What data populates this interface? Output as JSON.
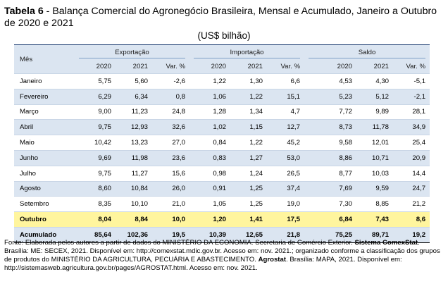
{
  "title": {
    "label": "Tabela 6",
    "sep": " - ",
    "text": "Balança Comercial do Agronegócio Brasileira, Mensal e Acumulado, Janeiro a Outubro de 2020 e 2021"
  },
  "unit": "(US$ bilhão)",
  "table": {
    "mes_header": "Mês",
    "groups": [
      "Exportação",
      "Importação",
      "Saldo"
    ],
    "subheaders": [
      "2020",
      "2021",
      "Var. %",
      "2020",
      "2021",
      "Var. %",
      "2020",
      "2021",
      "Var. %"
    ],
    "rows": [
      [
        "Janeiro",
        "5,75",
        "5,60",
        "-2,6",
        "1,22",
        "1,30",
        "6,6",
        "4,53",
        "4,30",
        "-5,1"
      ],
      [
        "Fevereiro",
        "6,29",
        "6,34",
        "0,8",
        "1,06",
        "1,22",
        "15,1",
        "5,23",
        "5,12",
        "-2,1"
      ],
      [
        "Março",
        "9,00",
        "11,23",
        "24,8",
        "1,28",
        "1,34",
        "4,7",
        "7,72",
        "9,89",
        "28,1"
      ],
      [
        "Abril",
        "9,75",
        "12,93",
        "32,6",
        "1,02",
        "1,15",
        "12,7",
        "8,73",
        "11,78",
        "34,9"
      ],
      [
        "Maio",
        "10,42",
        "13,23",
        "27,0",
        "0,84",
        "1,22",
        "45,2",
        "9,58",
        "12,01",
        "25,4"
      ],
      [
        "Junho",
        "9,69",
        "11,98",
        "23,6",
        "0,83",
        "1,27",
        "53,0",
        "8,86",
        "10,71",
        "20,9"
      ],
      [
        "Julho",
        "9,75",
        "11,27",
        "15,6",
        "0,98",
        "1,24",
        "26,5",
        "8,77",
        "10,03",
        "14,4"
      ],
      [
        "Agosto",
        "8,60",
        "10,84",
        "26,0",
        "0,91",
        "1,25",
        "37,4",
        "7,69",
        "9,59",
        "24,7"
      ],
      [
        "Setembro",
        "8,35",
        "10,10",
        "21,0",
        "1,05",
        "1,25",
        "19,0",
        "7,30",
        "8,85",
        "21,2"
      ],
      [
        "Outubro",
        "8,04",
        "8,84",
        "10,0",
        "1,20",
        "1,41",
        "17,5",
        "6,84",
        "7,43",
        "8,6"
      ],
      [
        "Acumulado",
        "85,64",
        "102,36",
        "19,5",
        "10,39",
        "12,65",
        "21,8",
        "75,25",
        "89,71",
        "19,2"
      ]
    ]
  },
  "source": {
    "p1": "Fonte: Elaborada pelos autores a partir de dados do MINISTÉRIO DA ECONOMIA. Secretaria de Comércio Exterior. ",
    "b1": "Sistema ComexStat",
    "p2": ". Brasília: ME: SECEX, 2021. Disponível em: http://comexstat.mdic.gov.br. Acesso em: nov. 2021.; organizado conforme a classificação dos grupos de produtos do MINISTÉRIO DA AGRICULTURA, PECUÁRIA E ABASTECIMENTO. ",
    "b2": "Agrostat",
    "p3": ". Brasília: MAPA, 2021. Disponível em: http://sistemasweb.agricultura.gov.br/pages/AGROSTAT.html. Acesso em: nov. 2021."
  }
}
